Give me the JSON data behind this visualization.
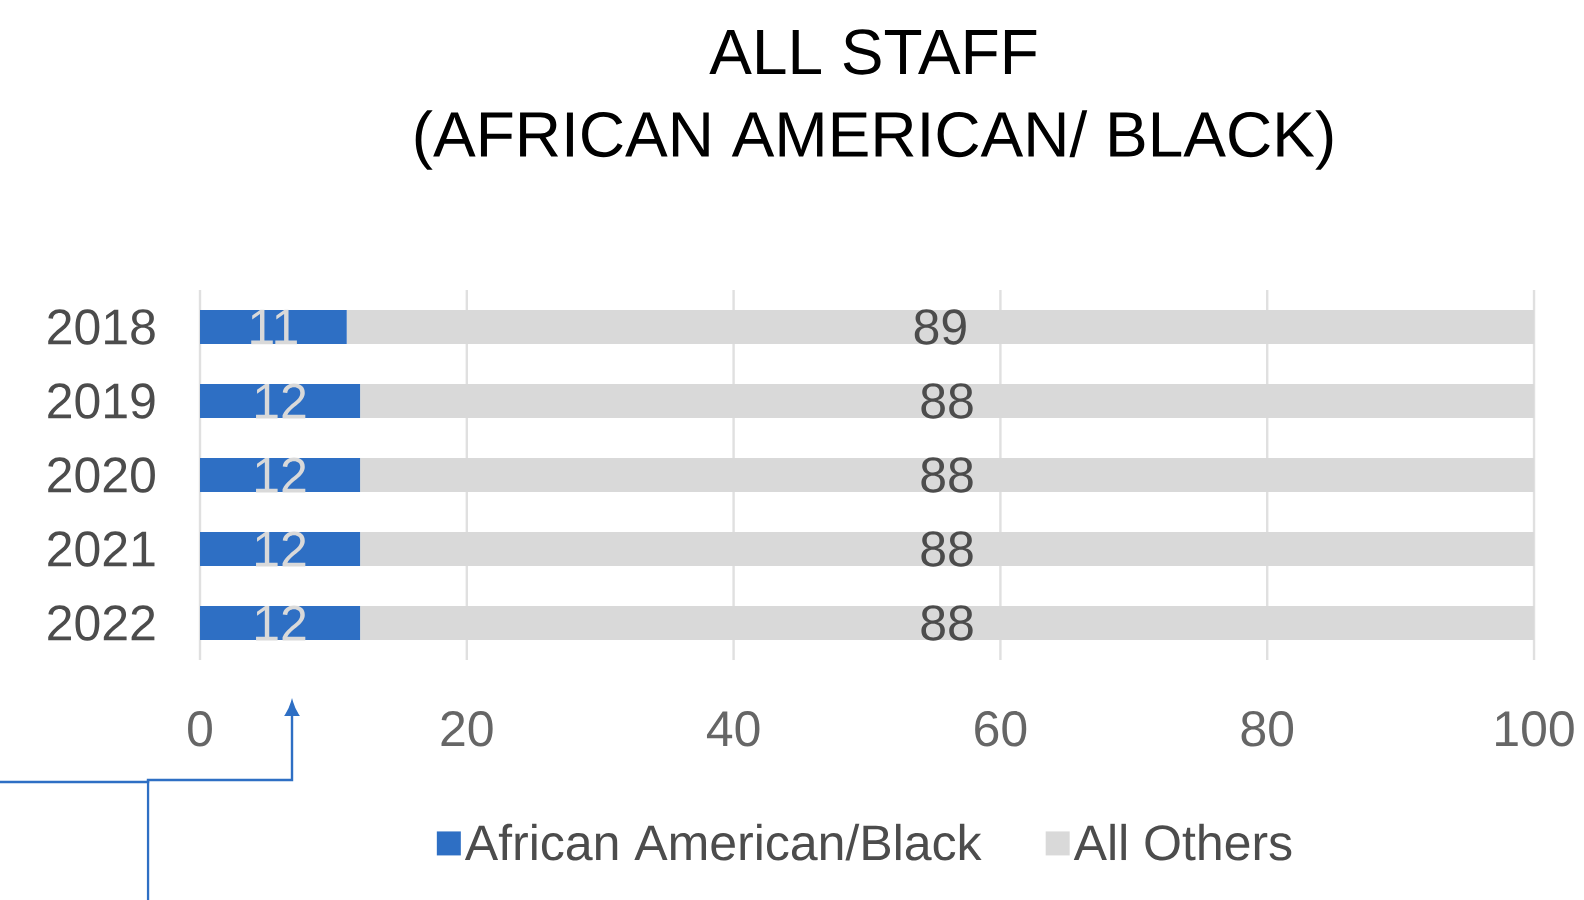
{
  "chart_data": {
    "type": "bar",
    "orientation": "horizontal",
    "stacked": true,
    "title": "ALL STAFF",
    "subtitle": "(AFRICAN AMERICAN/ BLACK)",
    "categories": [
      "2018",
      "2019",
      "2020",
      "2021",
      "2022"
    ],
    "series": [
      {
        "name": "African American/Black",
        "color": "#2e6fc4",
        "values": [
          11,
          12,
          12,
          12,
          12
        ]
      },
      {
        "name": "All Others",
        "color": "#d9d9d9",
        "values": [
          89,
          88,
          88,
          88,
          88
        ]
      }
    ],
    "xlim": [
      0,
      100
    ],
    "xticks": [
      0,
      20,
      40,
      60,
      80,
      100
    ],
    "grid": "x",
    "legend": "bottom",
    "data_labels": true
  }
}
